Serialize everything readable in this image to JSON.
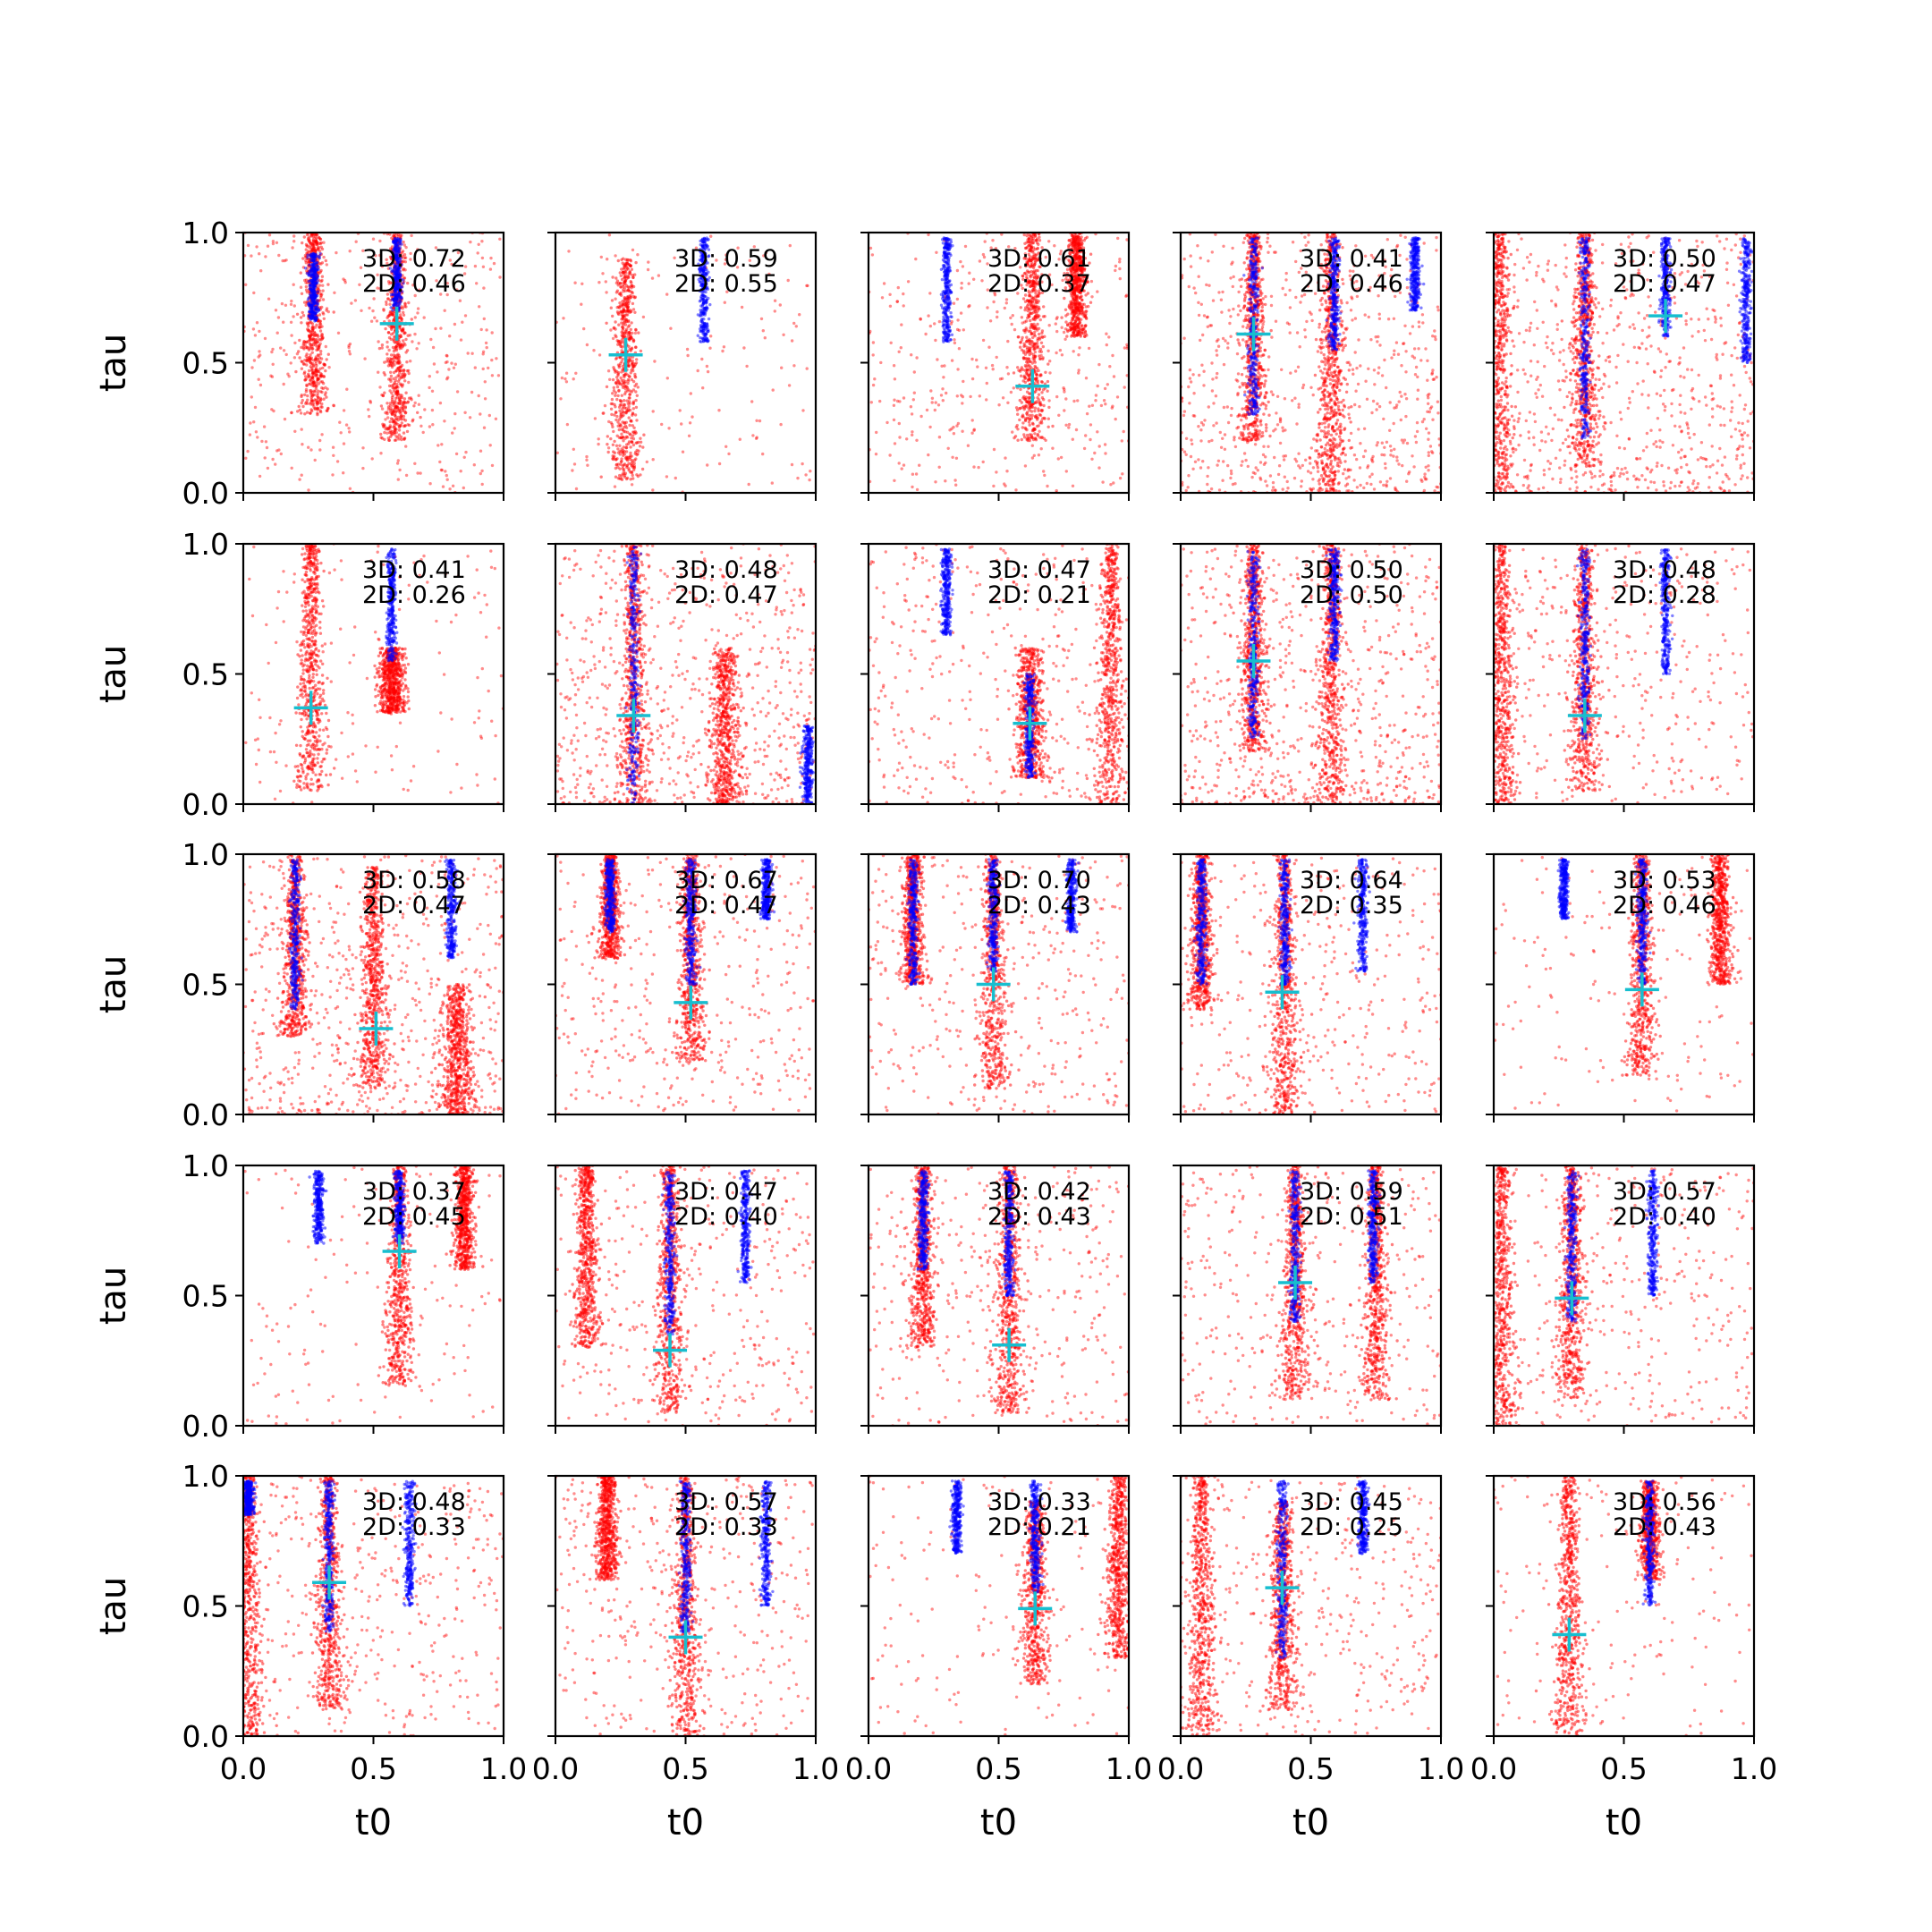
{
  "chart_data": {
    "type": "scatter",
    "layout": {
      "rows": 5,
      "cols": 5
    },
    "xlabel": "t0",
    "ylabel": "tau",
    "xlim": [
      0,
      1
    ],
    "ylim": [
      0,
      1
    ],
    "xticks": [
      "0.0",
      "0.5",
      "1.0"
    ],
    "yticks": [
      "0.0",
      "0.5",
      "1.0"
    ],
    "colors": {
      "red_points": "#ff0000",
      "blue_points": "#0000ff",
      "marker": "#17becf"
    },
    "series": [
      {
        "color": "red",
        "description": "red scatter points"
      },
      {
        "color": "blue",
        "description": "blue scatter points"
      },
      {
        "color": "cyan",
        "description": "cross marker"
      }
    ],
    "panels": [
      {
        "annot3d": "3D: 0.72",
        "annot2d": "2D: 0.46",
        "marker": [
          0.59,
          0.65
        ],
        "blue": [
          [
            0.27,
            0.66,
            0.92
          ],
          [
            0.59,
            0.7,
            0.98
          ]
        ],
        "red": [
          [
            0.59,
            0.2,
            1.0
          ],
          [
            0.27,
            0.3,
            1.0
          ]
        ],
        "bg": "med"
      },
      {
        "annot3d": "3D: 0.59",
        "annot2d": "2D: 0.55",
        "marker": [
          0.27,
          0.53
        ],
        "blue": [
          [
            0.57,
            0.58,
            0.98
          ]
        ],
        "red": [
          [
            0.27,
            0.05,
            0.9
          ]
        ],
        "bg": "low"
      },
      {
        "annot3d": "3D: 0.61",
        "annot2d": "2D: 0.37",
        "marker": [
          0.63,
          0.41
        ],
        "blue": [
          [
            0.3,
            0.58,
            0.98
          ]
        ],
        "red": [
          [
            0.63,
            0.2,
            1.0
          ],
          [
            0.8,
            0.6,
            1.0
          ]
        ],
        "bg": "med"
      },
      {
        "annot3d": "3D: 0.41",
        "annot2d": "2D: 0.46",
        "marker": [
          0.28,
          0.61
        ],
        "blue": [
          [
            0.28,
            0.3,
            0.98
          ],
          [
            0.59,
            0.55,
            0.98
          ],
          [
            0.9,
            0.7,
            0.98
          ]
        ],
        "red": [
          [
            0.28,
            0.2,
            1.0
          ],
          [
            0.58,
            0.0,
            1.0
          ]
        ],
        "bg": "high"
      },
      {
        "annot3d": "3D: 0.50",
        "annot2d": "2D: 0.47",
        "marker": [
          0.66,
          0.68
        ],
        "blue": [
          [
            0.35,
            0.2,
            0.98
          ],
          [
            0.66,
            0.6,
            0.98
          ],
          [
            0.97,
            0.5,
            0.98
          ]
        ],
        "red": [
          [
            0.02,
            0.0,
            1.0
          ],
          [
            0.35,
            0.1,
            1.0
          ]
        ],
        "bg": "high"
      },
      {
        "annot3d": "3D: 0.41",
        "annot2d": "2D: 0.26",
        "marker": [
          0.26,
          0.37
        ],
        "blue": [
          [
            0.57,
            0.55,
            0.98
          ]
        ],
        "red": [
          [
            0.26,
            0.05,
            1.0
          ],
          [
            0.57,
            0.35,
            0.6
          ]
        ],
        "bg": "low"
      },
      {
        "annot3d": "3D: 0.48",
        "annot2d": "2D: 0.47",
        "marker": [
          0.3,
          0.34
        ],
        "blue": [
          [
            0.3,
            0.0,
            1.0
          ],
          [
            0.97,
            0.0,
            0.3
          ]
        ],
        "red": [
          [
            0.3,
            0.0,
            1.0
          ],
          [
            0.65,
            0.0,
            0.6
          ]
        ],
        "bg": "high"
      },
      {
        "annot3d": "3D: 0.47",
        "annot2d": "2D: 0.21",
        "marker": [
          0.62,
          0.31
        ],
        "blue": [
          [
            0.3,
            0.65,
            0.98
          ],
          [
            0.62,
            0.1,
            0.5
          ]
        ],
        "red": [
          [
            0.62,
            0.1,
            0.6
          ],
          [
            0.93,
            0.0,
            1.0
          ]
        ],
        "bg": "med"
      },
      {
        "annot3d": "3D: 0.50",
        "annot2d": "2D: 0.50",
        "marker": [
          0.28,
          0.55
        ],
        "blue": [
          [
            0.28,
            0.25,
            0.98
          ],
          [
            0.59,
            0.55,
            0.98
          ]
        ],
        "red": [
          [
            0.28,
            0.2,
            1.0
          ],
          [
            0.58,
            0.0,
            1.0
          ]
        ],
        "bg": "high"
      },
      {
        "annot3d": "3D: 0.48",
        "annot2d": "2D: 0.28",
        "marker": [
          0.35,
          0.34
        ],
        "blue": [
          [
            0.35,
            0.25,
            0.98
          ],
          [
            0.66,
            0.5,
            0.98
          ]
        ],
        "red": [
          [
            0.03,
            0.0,
            1.0
          ],
          [
            0.35,
            0.05,
            1.0
          ]
        ],
        "bg": "med"
      },
      {
        "annot3d": "3D: 0.58",
        "annot2d": "2D: 0.47",
        "marker": [
          0.51,
          0.33
        ],
        "blue": [
          [
            0.2,
            0.4,
            0.98
          ],
          [
            0.8,
            0.6,
            0.98
          ]
        ],
        "red": [
          [
            0.2,
            0.3,
            1.0
          ],
          [
            0.5,
            0.1,
            0.95
          ],
          [
            0.82,
            0.0,
            0.5
          ]
        ],
        "bg": "high"
      },
      {
        "annot3d": "3D: 0.67",
        "annot2d": "2D: 0.47",
        "marker": [
          0.52,
          0.43
        ],
        "blue": [
          [
            0.21,
            0.7,
            0.98
          ],
          [
            0.81,
            0.75,
            0.98
          ],
          [
            0.52,
            0.5,
            0.98
          ]
        ],
        "red": [
          [
            0.52,
            0.2,
            1.0
          ],
          [
            0.21,
            0.6,
            1.0
          ]
        ],
        "bg": "med"
      },
      {
        "annot3d": "3D: 0.70",
        "annot2d": "2D: 0.43",
        "marker": [
          0.48,
          0.5
        ],
        "blue": [
          [
            0.17,
            0.5,
            0.98
          ],
          [
            0.48,
            0.55,
            0.98
          ],
          [
            0.78,
            0.7,
            0.98
          ]
        ],
        "red": [
          [
            0.48,
            0.1,
            1.0
          ],
          [
            0.17,
            0.5,
            1.0
          ]
        ],
        "bg": "med"
      },
      {
        "annot3d": "3D: 0.64",
        "annot2d": "2D: 0.35",
        "marker": [
          0.39,
          0.47
        ],
        "blue": [
          [
            0.08,
            0.5,
            0.98
          ],
          [
            0.4,
            0.5,
            0.98
          ],
          [
            0.7,
            0.55,
            0.98
          ]
        ],
        "red": [
          [
            0.4,
            0.0,
            1.0
          ],
          [
            0.08,
            0.4,
            1.0
          ]
        ],
        "bg": "med"
      },
      {
        "annot3d": "3D: 0.53",
        "annot2d": "2D: 0.46",
        "marker": [
          0.57,
          0.48
        ],
        "blue": [
          [
            0.27,
            0.75,
            0.98
          ],
          [
            0.57,
            0.5,
            0.98
          ]
        ],
        "red": [
          [
            0.57,
            0.15,
            1.0
          ],
          [
            0.87,
            0.5,
            1.0
          ]
        ],
        "bg": "low"
      },
      {
        "annot3d": "3D: 0.37",
        "annot2d": "2D: 0.45",
        "marker": [
          0.6,
          0.67
        ],
        "blue": [
          [
            0.29,
            0.7,
            0.98
          ],
          [
            0.6,
            0.7,
            0.98
          ]
        ],
        "red": [
          [
            0.6,
            0.15,
            1.0
          ],
          [
            0.85,
            0.6,
            1.0
          ]
        ],
        "bg": "low"
      },
      {
        "annot3d": "3D: 0.47",
        "annot2d": "2D: 0.40",
        "marker": [
          0.44,
          0.29
        ],
        "blue": [
          [
            0.73,
            0.55,
            0.98
          ],
          [
            0.44,
            0.35,
            0.98
          ]
        ],
        "red": [
          [
            0.44,
            0.05,
            1.0
          ],
          [
            0.12,
            0.3,
            1.0
          ]
        ],
        "bg": "med"
      },
      {
        "annot3d": "3D: 0.42",
        "annot2d": "2D: 0.43",
        "marker": [
          0.54,
          0.31
        ],
        "blue": [
          [
            0.21,
            0.6,
            0.98
          ],
          [
            0.54,
            0.5,
            0.98
          ]
        ],
        "red": [
          [
            0.54,
            0.05,
            1.0
          ],
          [
            0.21,
            0.3,
            1.0
          ]
        ],
        "bg": "med"
      },
      {
        "annot3d": "3D: 0.59",
        "annot2d": "2D: 0.51",
        "marker": [
          0.44,
          0.55
        ],
        "blue": [
          [
            0.44,
            0.4,
            0.98
          ],
          [
            0.74,
            0.55,
            0.98
          ]
        ],
        "red": [
          [
            0.44,
            0.1,
            1.0
          ],
          [
            0.75,
            0.1,
            1.0
          ]
        ],
        "bg": "med"
      },
      {
        "annot3d": "3D: 0.57",
        "annot2d": "2D: 0.40",
        "marker": [
          0.3,
          0.49
        ],
        "blue": [
          [
            0.3,
            0.4,
            0.98
          ],
          [
            0.61,
            0.5,
            0.98
          ]
        ],
        "red": [
          [
            0.3,
            0.1,
            1.0
          ],
          [
            0.03,
            0.0,
            1.0
          ]
        ],
        "bg": "med"
      },
      {
        "annot3d": "3D: 0.48",
        "annot2d": "2D: 0.33",
        "marker": [
          0.33,
          0.59
        ],
        "blue": [
          [
            0.33,
            0.4,
            0.98
          ],
          [
            0.64,
            0.5,
            0.98
          ],
          [
            0.02,
            0.85,
            0.98
          ]
        ],
        "red": [
          [
            0.33,
            0.1,
            1.0
          ],
          [
            0.02,
            0.0,
            1.0
          ]
        ],
        "bg": "med"
      },
      {
        "annot3d": "3D: 0.57",
        "annot2d": "2D: 0.33",
        "marker": [
          0.5,
          0.38
        ],
        "blue": [
          [
            0.81,
            0.5,
            0.98
          ],
          [
            0.5,
            0.4,
            0.98
          ]
        ],
        "red": [
          [
            0.5,
            0.0,
            1.0
          ],
          [
            0.2,
            0.6,
            1.0
          ]
        ],
        "bg": "med"
      },
      {
        "annot3d": "3D: 0.33",
        "annot2d": "2D: 0.21",
        "marker": [
          0.64,
          0.49
        ],
        "blue": [
          [
            0.34,
            0.7,
            0.98
          ],
          [
            0.64,
            0.55,
            0.98
          ]
        ],
        "red": [
          [
            0.64,
            0.2,
            0.9
          ],
          [
            0.96,
            0.3,
            1.0
          ]
        ],
        "bg": "low"
      },
      {
        "annot3d": "3D: 0.45",
        "annot2d": "2D: 0.25",
        "marker": [
          0.39,
          0.57
        ],
        "blue": [
          [
            0.39,
            0.3,
            0.98
          ],
          [
            0.7,
            0.7,
            0.98
          ]
        ],
        "red": [
          [
            0.08,
            0.0,
            1.0
          ],
          [
            0.39,
            0.1,
            0.9
          ]
        ],
        "bg": "med"
      },
      {
        "annot3d": "3D: 0.56",
        "annot2d": "2D: 0.43",
        "marker": [
          0.29,
          0.39
        ],
        "blue": [
          [
            0.6,
            0.5,
            0.98
          ]
        ],
        "red": [
          [
            0.29,
            0.0,
            1.0
          ],
          [
            0.6,
            0.6,
            0.98
          ]
        ],
        "bg": "low"
      }
    ]
  }
}
